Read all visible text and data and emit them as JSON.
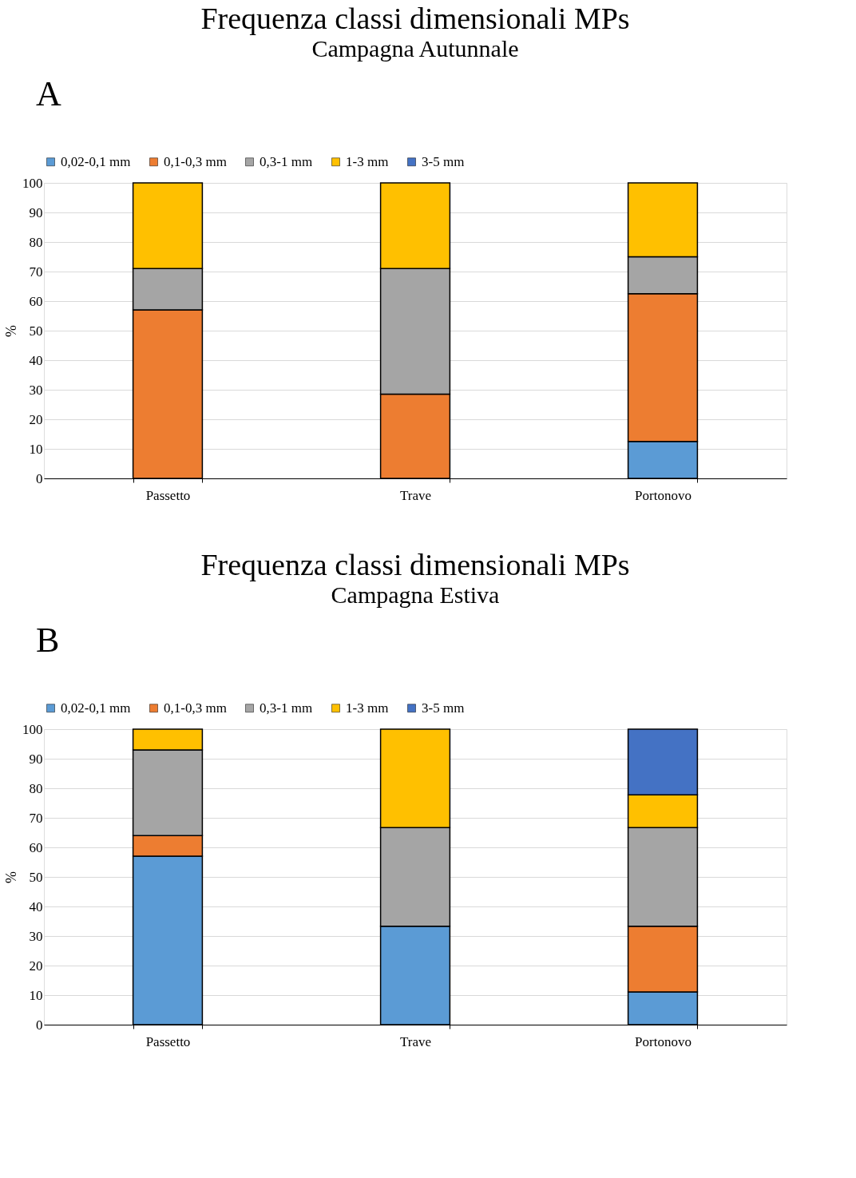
{
  "chart_data": [
    {
      "type": "bar",
      "title": "Frequenza classi dimensionali MPs",
      "subtitle": "Campagna Autunnale",
      "ylabel": "%",
      "annotations": [
        "A"
      ],
      "stacked": true,
      "legend": "top",
      "grid": "y",
      "ylim": [
        0,
        100
      ],
      "yticks": [
        0,
        10,
        20,
        30,
        40,
        50,
        60,
        70,
        80,
        90,
        100
      ],
      "categories": [
        "Passetto",
        "Trave",
        "Portonovo"
      ],
      "series": [
        {
          "name": "0,02-0,1 mm",
          "color": "#5b9bd5",
          "values": [
            null,
            null,
            12.5
          ]
        },
        {
          "name": "0,1-0,3 mm",
          "color": "#ed7d31",
          "values": [
            57,
            28.5,
            50
          ]
        },
        {
          "name": "0,3-1 mm",
          "color": "#a5a5a5",
          "values": [
            14,
            42.5,
            12.5
          ]
        },
        {
          "name": "1-3 mm",
          "color": "#ffc000",
          "values": [
            29,
            29,
            25
          ]
        },
        {
          "name": "3-5 mm",
          "color": "#4472c4",
          "values": [
            null,
            null,
            null
          ]
        }
      ]
    },
    {
      "type": "bar",
      "title": "Frequenza classi dimensionali MPs",
      "subtitle": "Campagna Estiva",
      "ylabel": "%",
      "annotations": [
        "B"
      ],
      "stacked": true,
      "legend": "top",
      "grid": "y",
      "ylim": [
        0,
        100
      ],
      "yticks": [
        0,
        10,
        20,
        30,
        40,
        50,
        60,
        70,
        80,
        90,
        100
      ],
      "categories": [
        "Passetto",
        "Trave",
        "Portonovo"
      ],
      "series": [
        {
          "name": "0,02-0,1 mm",
          "color": "#5b9bd5",
          "values": [
            57,
            33.3,
            11.1
          ]
        },
        {
          "name": "0,1-0,3 mm",
          "color": "#ed7d31",
          "values": [
            7,
            null,
            22.2
          ]
        },
        {
          "name": "0,3-1 mm",
          "color": "#a5a5a5",
          "values": [
            29,
            33.4,
            33.4
          ]
        },
        {
          "name": "1-3 mm",
          "color": "#ffc000",
          "values": [
            7,
            33.3,
            11.1
          ]
        },
        {
          "name": "3-5 mm",
          "color": "#4472c4",
          "values": [
            null,
            null,
            22.2
          ]
        }
      ]
    }
  ]
}
